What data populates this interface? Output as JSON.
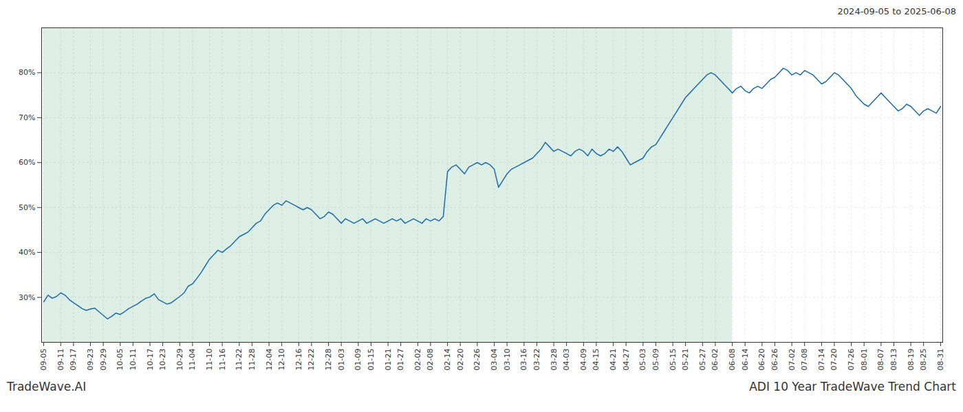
{
  "chart_data": {
    "type": "line",
    "title": "ADI 10 Year TradeWave Trend Chart",
    "subtitle": "2024-09-05 to 2025-06-08",
    "annotations": [
      "TradeWave.AI"
    ],
    "color": "#1a6aab",
    "grid": true,
    "ylim": [
      20,
      90
    ],
    "yticks": [
      {
        "value": 30,
        "label": "30%"
      },
      {
        "value": 40,
        "label": "40%"
      },
      {
        "value": 50,
        "label": "50%"
      },
      {
        "value": 60,
        "label": "60%"
      },
      {
        "value": 70,
        "label": "70%"
      },
      {
        "value": 80,
        "label": "80%"
      }
    ],
    "shaded_region": {
      "x": [
        "09-05",
        "06-08"
      ],
      "color": "#ddeee5"
    },
    "categories": [
      "09-05",
      null,
      null,
      null,
      "09-11",
      null,
      null,
      "09-17",
      null,
      null,
      null,
      "09-23",
      null,
      null,
      "09-29",
      null,
      null,
      null,
      "10-05",
      null,
      null,
      "10-11",
      null,
      null,
      null,
      "10-17",
      null,
      null,
      "10-23",
      null,
      null,
      null,
      "10-29",
      null,
      null,
      "11-04",
      null,
      null,
      null,
      "11-10",
      null,
      null,
      "11-16",
      null,
      null,
      null,
      "11-22",
      null,
      null,
      "11-28",
      null,
      null,
      null,
      "12-04",
      null,
      null,
      "12-10",
      null,
      null,
      null,
      "12-16",
      null,
      null,
      "12-22",
      null,
      null,
      null,
      "12-28",
      null,
      null,
      "01-03",
      null,
      null,
      null,
      "01-09",
      null,
      null,
      "01-15",
      null,
      null,
      null,
      "01-21",
      null,
      null,
      "01-27",
      null,
      null,
      null,
      "02-02",
      null,
      null,
      "02-08",
      null,
      null,
      null,
      "02-14",
      null,
      null,
      "02-20",
      null,
      null,
      null,
      "02-26",
      null,
      null,
      null,
      "03-04",
      null,
      null,
      "03-10",
      null,
      null,
      null,
      "03-16",
      null,
      null,
      "03-22",
      null,
      null,
      null,
      "03-28",
      null,
      null,
      "04-03",
      null,
      null,
      null,
      "04-09",
      null,
      null,
      "04-15",
      null,
      null,
      null,
      "04-21",
      null,
      null,
      "04-27",
      null,
      null,
      null,
      "05-03",
      null,
      null,
      "05-09",
      null,
      null,
      null,
      "05-15",
      null,
      null,
      "05-21",
      null,
      null,
      null,
      "05-27",
      null,
      null,
      "06-02",
      null,
      null,
      null,
      "06-08",
      null,
      null,
      "06-14",
      null,
      null,
      null,
      "06-20",
      null,
      null,
      "06-26",
      null,
      null,
      null,
      "07-02",
      null,
      null,
      "07-08",
      null,
      null,
      null,
      "07-14",
      null,
      null,
      "07-20",
      null,
      null,
      null,
      "07-26",
      null,
      null,
      "08-01",
      null,
      null,
      null,
      "08-07",
      null,
      null,
      "08-13",
      null,
      null,
      null,
      "08-19",
      null,
      null,
      "08-25",
      null,
      null,
      null,
      "08-31"
    ],
    "values": [
      29.0,
      30.5,
      29.8,
      30.2,
      31.0,
      30.5,
      29.5,
      28.8,
      28.2,
      27.5,
      27.1,
      27.4,
      27.6,
      26.8,
      26.0,
      25.2,
      25.8,
      26.5,
      26.2,
      26.8,
      27.5,
      28.0,
      28.5,
      29.2,
      29.8,
      30.1,
      30.8,
      29.5,
      29.0,
      28.5,
      28.8,
      29.5,
      30.2,
      31.0,
      32.5,
      33.0,
      34.2,
      35.5,
      37.0,
      38.5,
      39.5,
      40.5,
      40.0,
      40.8,
      41.5,
      42.5,
      43.5,
      44.0,
      44.5,
      45.5,
      46.5,
      47.0,
      48.5,
      49.5,
      50.5,
      51.0,
      50.5,
      51.5,
      51.0,
      50.5,
      50.0,
      49.5,
      50.0,
      49.5,
      48.5,
      47.5,
      48.0,
      49.0,
      48.5,
      47.5,
      46.5,
      47.5,
      47.0,
      46.5,
      47.0,
      47.5,
      46.5,
      47.0,
      47.5,
      47.0,
      46.5,
      47.0,
      47.5,
      47.0,
      47.5,
      46.5,
      47.0,
      47.5,
      47.0,
      46.5,
      47.5,
      47.0,
      47.5,
      47.0,
      48.0,
      58.0,
      59.0,
      59.5,
      58.5,
      57.5,
      59.0,
      59.5,
      60.0,
      59.5,
      60.0,
      59.5,
      58.5,
      54.5,
      56.0,
      57.5,
      58.5,
      59.0,
      59.5,
      60.0,
      60.5,
      61.0,
      62.0,
      63.0,
      64.5,
      63.5,
      62.5,
      63.0,
      62.5,
      62.0,
      61.5,
      62.5,
      63.0,
      62.5,
      61.5,
      63.0,
      62.0,
      61.5,
      62.0,
      63.0,
      62.5,
      63.5,
      62.5,
      61.0,
      59.5,
      60.0,
      60.5,
      61.0,
      62.5,
      63.5,
      64.0,
      65.5,
      67.0,
      68.5,
      70.0,
      71.5,
      73.0,
      74.5,
      75.5,
      76.5,
      77.5,
      78.5,
      79.5,
      80.0,
      79.5,
      78.5,
      77.5,
      76.5,
      75.5,
      76.5,
      77.0,
      76.0,
      75.5,
      76.5,
      77.0,
      76.5,
      77.5,
      78.5,
      79.0,
      80.0,
      81.0,
      80.5,
      79.5,
      80.0,
      79.5,
      80.5,
      80.0,
      79.5,
      78.5,
      77.5,
      78.0,
      79.0,
      80.0,
      79.5,
      78.5,
      77.5,
      76.5,
      75.0,
      74.0,
      73.0,
      72.5,
      73.5,
      74.5,
      75.5,
      74.5,
      73.5,
      72.5,
      71.5,
      72.0,
      73.0,
      72.5,
      71.5,
      70.5,
      71.5,
      72.0,
      71.5,
      71.0,
      72.5
    ]
  }
}
